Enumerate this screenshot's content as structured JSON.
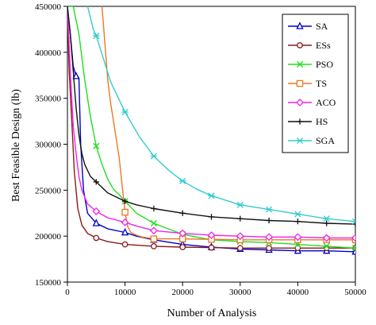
{
  "chart_data": {
    "type": "line",
    "title": "",
    "xlabel": "Number of Analysis",
    "ylabel": "Best Feasible Design (lb)",
    "xlim": [
      0,
      50000
    ],
    "ylim": [
      150000,
      450000
    ],
    "xticks": [
      0,
      10000,
      20000,
      30000,
      40000,
      50000
    ],
    "yticks": [
      150000,
      200000,
      250000,
      300000,
      350000,
      400000,
      450000
    ],
    "xtick_labels": [
      "0",
      "10000",
      "20000",
      "30000",
      "40000",
      "50000"
    ],
    "ytick_labels": [
      "150000",
      "200000",
      "250000",
      "300000",
      "350000",
      "400000",
      "450000"
    ],
    "grid": false,
    "legend_position": "top-right",
    "series": [
      {
        "name": "SA",
        "color": "#0000cc",
        "marker": "triangle",
        "x": [
          0,
          500,
          1000,
          1500,
          2000,
          2300,
          2800,
          3500,
          5000,
          7000,
          10000,
          12000,
          15000,
          20000,
          25000,
          30000,
          35000,
          40000,
          45000,
          50000
        ],
        "y": [
          450000,
          420000,
          385000,
          374000,
          372000,
          300000,
          250000,
          225000,
          214000,
          208000,
          204000,
          200000,
          196000,
          191000,
          188000,
          186000,
          185000,
          184000,
          184000,
          183000
        ],
        "marker_x": [
          1500,
          5000,
          10000,
          15000,
          20000,
          25000,
          30000,
          35000,
          40000,
          45000,
          50000
        ],
        "marker_y": [
          374000,
          214000,
          204000,
          196000,
          191000,
          188000,
          186000,
          185000,
          184000,
          184000,
          183000
        ]
      },
      {
        "name": "ESs",
        "color": "#8b1a1a",
        "marker": "circle",
        "x": [
          0,
          300,
          800,
          1200,
          1800,
          2500,
          3500,
          5000,
          7000,
          10000,
          15000,
          20000,
          25000,
          30000,
          35000,
          40000,
          45000,
          50000
        ],
        "y": [
          450000,
          380000,
          320000,
          270000,
          230000,
          212000,
          203000,
          198000,
          194000,
          191000,
          189000,
          188000,
          187500,
          187000,
          187000,
          187000,
          187000,
          187000
        ],
        "marker_x": [
          5000,
          10000,
          15000,
          20000,
          25000,
          30000,
          35000,
          40000,
          45000,
          50000
        ],
        "marker_y": [
          198000,
          191000,
          189000,
          188000,
          187500,
          187000,
          187000,
          187000,
          187000,
          187000
        ]
      },
      {
        "name": "PSO",
        "color": "#22dd22",
        "marker": "x",
        "x": [
          0,
          1000,
          2000,
          3000,
          4000,
          5000,
          6000,
          7000,
          8000,
          9000,
          10000,
          12000,
          15000,
          20000,
          25000,
          30000,
          35000,
          40000,
          45000,
          50000
        ],
        "y": [
          450000,
          450000,
          420000,
          370000,
          330000,
          298000,
          278000,
          262000,
          251000,
          245000,
          238000,
          225000,
          214000,
          202000,
          196000,
          194000,
          193000,
          191000,
          189000,
          187000
        ],
        "marker_x": [
          5000,
          10000,
          15000,
          20000,
          25000,
          30000,
          35000,
          40000,
          45000,
          50000
        ],
        "marker_y": [
          298000,
          238000,
          214000,
          202000,
          196000,
          194000,
          193000,
          191000,
          189000,
          187000
        ]
      },
      {
        "name": "TS",
        "color": "#ee7722",
        "marker": "square",
        "x": [
          6000,
          6500,
          7000,
          7500,
          8000,
          8500,
          9000,
          9500,
          10000,
          10500,
          11000,
          12000,
          13000,
          15000,
          20000,
          25000,
          30000,
          35000,
          40000,
          45000,
          50000
        ],
        "y": [
          450000,
          410000,
          370000,
          345000,
          325000,
          305000,
          285000,
          255000,
          226000,
          210000,
          204000,
          201000,
          199000,
          197000,
          197000,
          196500,
          196000,
          196000,
          196000,
          196000,
          196000
        ],
        "marker_x": [
          10000,
          15000,
          20000,
          25000,
          30000,
          35000,
          40000,
          45000,
          50000
        ],
        "marker_y": [
          226000,
          197000,
          197000,
          196500,
          196000,
          196000,
          196000,
          196000,
          196000
        ]
      },
      {
        "name": "ACO",
        "color": "#ee22ee",
        "marker": "diamond",
        "x": [
          0,
          500,
          1000,
          1500,
          2000,
          2500,
          3500,
          5000,
          7000,
          10000,
          12000,
          15000,
          20000,
          25000,
          30000,
          35000,
          40000,
          45000,
          50000
        ],
        "y": [
          450000,
          380000,
          320000,
          290000,
          265000,
          250000,
          235000,
          227000,
          220000,
          215000,
          211000,
          206000,
          203000,
          201000,
          200000,
          199000,
          199000,
          198000,
          198000
        ],
        "marker_x": [
          5000,
          10000,
          15000,
          20000,
          25000,
          30000,
          35000,
          40000,
          45000,
          50000
        ],
        "marker_y": [
          227000,
          215000,
          206000,
          203000,
          201000,
          200000,
          199000,
          199000,
          198000,
          198000
        ]
      },
      {
        "name": "HS",
        "color": "#111111",
        "marker": "plus",
        "x": [
          0,
          500,
          1000,
          1500,
          2000,
          2500,
          3000,
          4000,
          5000,
          7000,
          10000,
          12000,
          15000,
          20000,
          25000,
          30000,
          35000,
          40000,
          45000,
          50000
        ],
        "y": [
          450000,
          420000,
          380000,
          340000,
          310000,
          290000,
          278000,
          265000,
          259000,
          247000,
          238000,
          234000,
          230000,
          225000,
          221000,
          219000,
          217000,
          216000,
          214000,
          213000
        ],
        "marker_x": [
          5000,
          10000,
          15000,
          20000,
          25000,
          30000,
          35000,
          40000,
          45000,
          50000
        ],
        "marker_y": [
          259000,
          238000,
          230000,
          225000,
          221000,
          219000,
          217000,
          216000,
          214000,
          213000
        ]
      },
      {
        "name": "SGA",
        "color": "#33cccc",
        "marker": "star",
        "x": [
          3500,
          4500,
          5000,
          6000,
          7500,
          10000,
          12500,
          15000,
          17500,
          20000,
          22500,
          25000,
          30000,
          35000,
          40000,
          45000,
          50000
        ],
        "y": [
          450000,
          425000,
          418000,
          398000,
          368000,
          335000,
          308000,
          287000,
          272000,
          260000,
          251000,
          244000,
          234000,
          229000,
          224000,
          219000,
          216000
        ],
        "marker_x": [
          5000,
          10000,
          15000,
          20000,
          25000,
          30000,
          35000,
          40000,
          45000,
          50000
        ],
        "marker_y": [
          418000,
          335000,
          287000,
          260000,
          244000,
          234000,
          229000,
          224000,
          219000,
          216000
        ]
      }
    ]
  }
}
